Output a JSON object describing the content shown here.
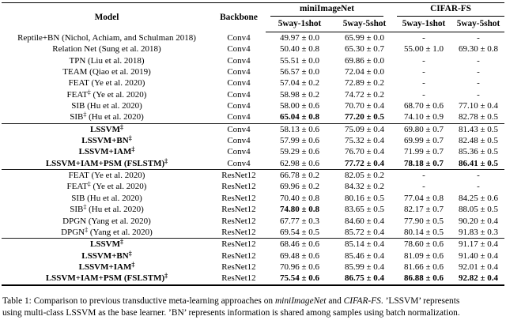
{
  "page": {
    "background": "#ffffff",
    "text_color": "#000000",
    "rule_color": "#000000"
  },
  "table": {
    "headers": {
      "model": "Model",
      "backbone": "Backbone",
      "groups": [
        {
          "label": "miniImageNet",
          "subs": [
            "5way-1shot",
            "5way-5shot"
          ]
        },
        {
          "label": "CIFAR-FS",
          "subs": [
            "5way-1shot",
            "5way-5shot"
          ]
        }
      ]
    },
    "sections": [
      {
        "name": "conv4-baselines",
        "rows": [
          {
            "model_pre": "Reptile+BN (Nichol, Achiam, and Schulman 2018)",
            "model_sup": "",
            "model_post": "",
            "model_bold": false,
            "backbone": "Conv4",
            "cells": [
              {
                "text": "49.97 ± 0.0",
                "bold": false
              },
              {
                "text": "65.99 ± 0.0",
                "bold": false
              },
              {
                "text": "-",
                "bold": false
              },
              {
                "text": "-",
                "bold": false
              }
            ]
          },
          {
            "model_pre": "Relation Net (Sung et al. 2018)",
            "model_sup": "",
            "model_post": "",
            "model_bold": false,
            "backbone": "Conv4",
            "cells": [
              {
                "text": "50.40 ± 0.8",
                "bold": false
              },
              {
                "text": "65.30 ± 0.7",
                "bold": false
              },
              {
                "text": "55.00 ± 1.0",
                "bold": false
              },
              {
                "text": "69.30 ± 0.8",
                "bold": false
              }
            ]
          },
          {
            "model_pre": "TPN (Liu et al. 2018)",
            "model_sup": "",
            "model_post": "",
            "model_bold": false,
            "backbone": "Conv4",
            "cells": [
              {
                "text": "55.51 ± 0.0",
                "bold": false
              },
              {
                "text": "69.86 ± 0.0",
                "bold": false
              },
              {
                "text": "-",
                "bold": false
              },
              {
                "text": "-",
                "bold": false
              }
            ]
          },
          {
            "model_pre": "TEAM (Qiao et al. 2019)",
            "model_sup": "",
            "model_post": "",
            "model_bold": false,
            "backbone": "Conv4",
            "cells": [
              {
                "text": "56.57 ± 0.0",
                "bold": false
              },
              {
                "text": "72.04 ± 0.0",
                "bold": false
              },
              {
                "text": "-",
                "bold": false
              },
              {
                "text": "-",
                "bold": false
              }
            ]
          },
          {
            "model_pre": "FEAT (Ye et al. 2020)",
            "model_sup": "",
            "model_post": "",
            "model_bold": false,
            "backbone": "Conv4",
            "cells": [
              {
                "text": "57.04 ± 0.2",
                "bold": false
              },
              {
                "text": "72.89 ± 0.2",
                "bold": false
              },
              {
                "text": "-",
                "bold": false
              },
              {
                "text": "-",
                "bold": false
              }
            ]
          },
          {
            "model_pre": "FEAT",
            "model_sup": "‡",
            "model_post": " (Ye et al. 2020)",
            "model_bold": false,
            "backbone": "Conv4",
            "cells": [
              {
                "text": "58.98 ± 0.2",
                "bold": false
              },
              {
                "text": "74.72 ± 0.2",
                "bold": false
              },
              {
                "text": "-",
                "bold": false
              },
              {
                "text": "-",
                "bold": false
              }
            ]
          },
          {
            "model_pre": "SIB (Hu et al. 2020)",
            "model_sup": "",
            "model_post": "",
            "model_bold": false,
            "backbone": "Conv4",
            "cells": [
              {
                "text": "58.00 ± 0.6",
                "bold": false
              },
              {
                "text": "70.70 ± 0.4",
                "bold": false
              },
              {
                "text": "68.70 ± 0.6",
                "bold": false
              },
              {
                "text": "77.10 ± 0.4",
                "bold": false
              }
            ]
          },
          {
            "model_pre": "SIB",
            "model_sup": "‡",
            "model_post": " (Hu et al. 2020)",
            "model_bold": false,
            "backbone": "Conv4",
            "cells": [
              {
                "text": "65.04 ± 0.8",
                "bold": true
              },
              {
                "text": "77.20 ± 0.5",
                "bold": true
              },
              {
                "text": "74.10 ± 0.9",
                "bold": false
              },
              {
                "text": "82.78 ± 0.5",
                "bold": false
              }
            ]
          }
        ]
      },
      {
        "name": "conv4-lssvm",
        "rows": [
          {
            "model_pre": "LSSVM",
            "model_sup": "‡",
            "model_post": "",
            "model_bold": true,
            "backbone": "Conv4",
            "cells": [
              {
                "text": "58.13 ± 0.6",
                "bold": false
              },
              {
                "text": "75.09 ± 0.4",
                "bold": false
              },
              {
                "text": "69.80 ± 0.7",
                "bold": false
              },
              {
                "text": "81.43 ± 0.5",
                "bold": false
              }
            ]
          },
          {
            "model_pre": "LSSVM+BN",
            "model_sup": "‡",
            "model_post": "",
            "model_bold": true,
            "backbone": "Conv4",
            "cells": [
              {
                "text": "57.99 ± 0.6",
                "bold": false
              },
              {
                "text": "75.32 ± 0.4",
                "bold": false
              },
              {
                "text": "69.99 ± 0.7",
                "bold": false
              },
              {
                "text": "82.48 ± 0.5",
                "bold": false
              }
            ]
          },
          {
            "model_pre": "LSSVM+IAM",
            "model_sup": "‡",
            "model_post": "",
            "model_bold": true,
            "backbone": "Conv4",
            "cells": [
              {
                "text": "59.29 ± 0.6",
                "bold": false
              },
              {
                "text": "76.70 ± 0.4",
                "bold": false
              },
              {
                "text": "71.99 ± 0.7",
                "bold": false
              },
              {
                "text": "85.36 ± 0.5",
                "bold": false
              }
            ]
          },
          {
            "model_pre": "LSSVM+IAM+PSM (FSLSTM)",
            "model_sup": "‡",
            "model_post": "",
            "model_bold": true,
            "backbone": "Conv4",
            "cells": [
              {
                "text": "62.98 ± 0.6",
                "bold": false
              },
              {
                "text": "77.72 ± 0.4",
                "bold": true
              },
              {
                "text": "78.18 ± 0.7",
                "bold": true
              },
              {
                "text": "86.41 ± 0.5",
                "bold": true
              }
            ]
          }
        ]
      },
      {
        "name": "resnet12-baselines",
        "rows": [
          {
            "model_pre": "FEAT (Ye et al. 2020)",
            "model_sup": "",
            "model_post": "",
            "model_bold": false,
            "backbone": "ResNet12",
            "cells": [
              {
                "text": "66.78 ± 0.2",
                "bold": false
              },
              {
                "text": "82.05 ± 0.2",
                "bold": false
              },
              {
                "text": "-",
                "bold": false
              },
              {
                "text": "-",
                "bold": false
              }
            ]
          },
          {
            "model_pre": "FEAT",
            "model_sup": "‡",
            "model_post": " (Ye et al. 2020)",
            "model_bold": false,
            "backbone": "ResNet12",
            "cells": [
              {
                "text": "69.96 ± 0.2",
                "bold": false
              },
              {
                "text": "84.32 ± 0.2",
                "bold": false
              },
              {
                "text": "-",
                "bold": false
              },
              {
                "text": "-",
                "bold": false
              }
            ]
          },
          {
            "model_pre": "SIB (Hu et al. 2020)",
            "model_sup": "",
            "model_post": "",
            "model_bold": false,
            "backbone": "ResNet12",
            "cells": [
              {
                "text": "70.40 ± 0.8",
                "bold": false
              },
              {
                "text": "80.16 ± 0.5",
                "bold": false
              },
              {
                "text": "77.04 ± 0.8",
                "bold": false
              },
              {
                "text": "84.25 ± 0.6",
                "bold": false
              }
            ]
          },
          {
            "model_pre": "SIB",
            "model_sup": "‡",
            "model_post": " (Hu et al. 2020)",
            "model_bold": false,
            "backbone": "ResNet12",
            "cells": [
              {
                "text": "74.80 ± 0.8",
                "bold": true
              },
              {
                "text": "83.65 ± 0.5",
                "bold": false
              },
              {
                "text": "82.17 ± 0.7",
                "bold": false
              },
              {
                "text": "88.05 ± 0.5",
                "bold": false
              }
            ]
          },
          {
            "model_pre": "DPGN (Yang et al. 2020)",
            "model_sup": "",
            "model_post": "",
            "model_bold": false,
            "backbone": "ResNet12",
            "cells": [
              {
                "text": "67.77 ± 0.3",
                "bold": false
              },
              {
                "text": "84.60 ± 0.4",
                "bold": false
              },
              {
                "text": "77.90 ± 0.5",
                "bold": false
              },
              {
                "text": "90.20 ± 0.4",
                "bold": false
              }
            ]
          },
          {
            "model_pre": "DPGN",
            "model_sup": "‡",
            "model_post": " (Yang et al. 2020)",
            "model_bold": false,
            "backbone": "ResNet12",
            "cells": [
              {
                "text": "69.54 ± 0.5",
                "bold": false
              },
              {
                "text": "85.72 ± 0.4",
                "bold": false
              },
              {
                "text": "80.14 ± 0.5",
                "bold": false
              },
              {
                "text": "91.83 ± 0.3",
                "bold": false
              }
            ]
          }
        ]
      },
      {
        "name": "resnet12-lssvm",
        "rows": [
          {
            "model_pre": "LSSVM",
            "model_sup": "‡",
            "model_post": "",
            "model_bold": true,
            "backbone": "ResNet12",
            "cells": [
              {
                "text": "68.46 ± 0.6",
                "bold": false
              },
              {
                "text": "85.14 ± 0.4",
                "bold": false
              },
              {
                "text": "78.60 ± 0.6",
                "bold": false
              },
              {
                "text": "91.17 ± 0.4",
                "bold": false
              }
            ]
          },
          {
            "model_pre": "LSSVM+BN",
            "model_sup": "‡",
            "model_post": "",
            "model_bold": true,
            "backbone": "ResNet12",
            "cells": [
              {
                "text": "69.48 ± 0.6",
                "bold": false
              },
              {
                "text": "85.46 ± 0.4",
                "bold": false
              },
              {
                "text": "81.09 ± 0.6",
                "bold": false
              },
              {
                "text": "91.40 ± 0.4",
                "bold": false
              }
            ]
          },
          {
            "model_pre": "LSSVM+IAM",
            "model_sup": "‡",
            "model_post": "",
            "model_bold": true,
            "backbone": "ResNet12",
            "cells": [
              {
                "text": "70.96 ± 0.6",
                "bold": false
              },
              {
                "text": "85.99 ± 0.4",
                "bold": false
              },
              {
                "text": "81.66 ± 0.6",
                "bold": false
              },
              {
                "text": "92.01 ± 0.4",
                "bold": false
              }
            ]
          },
          {
            "model_pre": "LSSVM+IAM+PSM (FSLSTM)",
            "model_sup": "‡",
            "model_post": "",
            "model_bold": true,
            "backbone": "ResNet12",
            "cells": [
              {
                "text": "75.54 ± 0.6",
                "bold": true
              },
              {
                "text": "86.75 ± 0.4",
                "bold": true
              },
              {
                "text": "86.88 ± 0.6",
                "bold": true
              },
              {
                "text": "92.82 ± 0.4",
                "bold": true
              }
            ]
          }
        ]
      }
    ]
  },
  "caption": {
    "seg0": "Table 1: Comparison to previous transductive meta-learning approaches on ",
    "seg1": "miniImageNet",
    "seg2": " and ",
    "seg3": "CIFAR-FS",
    "seg4": ". ’LSSVM’ represents",
    "line2": "using multi-class LSSVM as the base learner. ’BN’ represents information is shared among samples using batch normalization."
  }
}
